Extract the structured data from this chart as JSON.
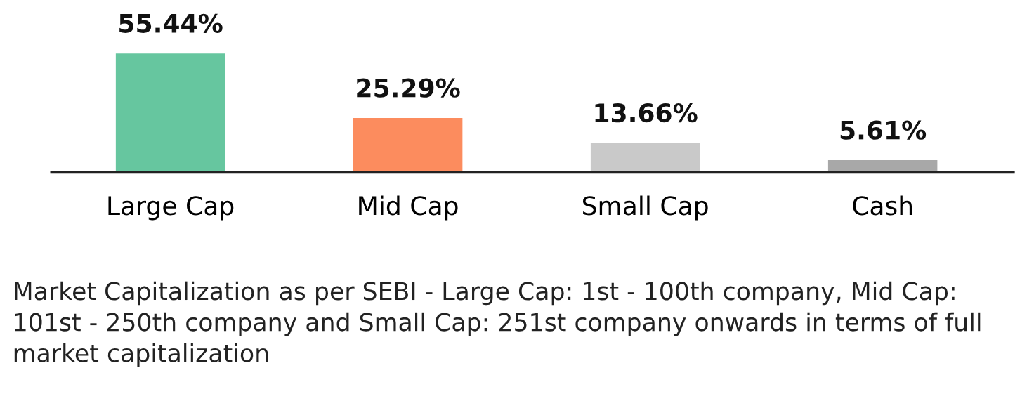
{
  "chart_data": {
    "type": "bar",
    "categories": [
      "Large Cap",
      "Mid Cap",
      "Small Cap",
      "Cash"
    ],
    "values": [
      55.44,
      25.29,
      13.66,
      5.61
    ],
    "colors": [
      "#66c69f",
      "#fc8c5e",
      "#c9c9c9",
      "#a8a8a8"
    ],
    "value_labels": [
      "55.44%",
      "25.29%",
      "13.66%",
      "5.61%"
    ],
    "annotations": [
      "Market Capitalization as per SEBI - Large Cap: 1st - 100th company, Mid Cap: 101st - 250th company and Small Cap: 251st company onwards in terms of full market capitalization"
    ],
    "grid": false,
    "legend": false
  }
}
